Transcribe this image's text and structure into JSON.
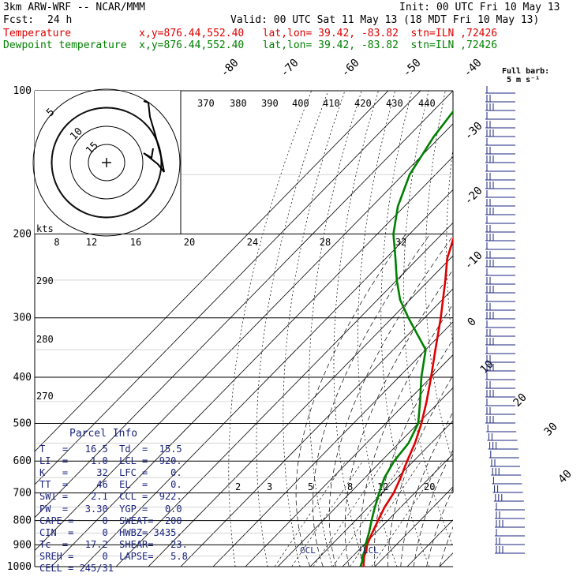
{
  "header": {
    "model": "3km ARW-WRF -- NCAR/MMM",
    "init": "Init: 00 UTC Fri 10 May 13",
    "fcst_label": "Fcst:",
    "fcst_value": "24 h",
    "valid": "Valid: 00 UTC Sat 11 May 13 (18 MDT Fri 10 May 13)",
    "temp_line": "Temperature           x,y=876.44,552.40   lat,lon= 39.42, -83.82  stn=ILN ,72426",
    "dew_line": "Dewpoint temperature  x,y=876.44,552.40   lat,lon= 39.42, -83.82  stn=ILN ,72426"
  },
  "colors": {
    "temperature": "#e00000",
    "dewpoint": "#008000",
    "barbs": "#1a237e",
    "text_blue": "#1a237e"
  },
  "chart_data": {
    "type": "line",
    "subtype": "skew-t log-p sounding",
    "y_axis": {
      "label": "pressure (hPa)",
      "ticks": [
        100,
        200,
        300,
        400,
        500,
        600,
        700,
        800,
        900,
        1000
      ],
      "scale": "log"
    },
    "isotherm_labels": [
      "-80",
      "-70",
      "-60",
      "-50",
      "-40",
      "-30",
      "-20",
      "-10",
      "0",
      "10",
      "20",
      "30",
      "40"
    ],
    "theta_labels": [
      "370",
      "380",
      "390",
      "400",
      "410",
      "420",
      "430",
      "440",
      "290",
      "280",
      "270"
    ],
    "mixing_ratio_labels": [
      "2",
      "3",
      "5",
      "8",
      "12",
      "20"
    ],
    "hodograph": {
      "unit": "kts",
      "ring_labels": [
        "5",
        "10",
        "15"
      ],
      "speed_ticks": [
        "8",
        "12",
        "16",
        "20",
        "24",
        "28",
        "32"
      ]
    },
    "barb_legend": [
      "Full barb:",
      "5 m s⁻¹"
    ],
    "annotations": [
      "CCL",
      "LCL"
    ],
    "series": [
      {
        "name": "Temperature",
        "unit": "C",
        "points": [
          [
            1000,
            16.5
          ],
          [
            975,
            15
          ],
          [
            950,
            13.5
          ],
          [
            925,
            12.5
          ],
          [
            900,
            11
          ],
          [
            850,
            9
          ],
          [
            800,
            7
          ],
          [
            750,
            5
          ],
          [
            700,
            3.5
          ],
          [
            650,
            1
          ],
          [
            600,
            -2
          ],
          [
            550,
            -5
          ],
          [
            500,
            -9
          ],
          [
            450,
            -14
          ],
          [
            400,
            -20
          ],
          [
            350,
            -27
          ],
          [
            300,
            -35
          ],
          [
            250,
            -45
          ],
          [
            225,
            -51
          ],
          [
            200,
            -56
          ],
          [
            175,
            -56
          ],
          [
            150,
            -55
          ],
          [
            125,
            -57
          ],
          [
            100,
            -60
          ]
        ]
      },
      {
        "name": "Dewpoint temperature",
        "unit": "C",
        "points": [
          [
            1000,
            15.5
          ],
          [
            975,
            14.5
          ],
          [
            950,
            13
          ],
          [
            925,
            12
          ],
          [
            900,
            10.5
          ],
          [
            850,
            8
          ],
          [
            800,
            5
          ],
          [
            750,
            2
          ],
          [
            700,
            -1
          ],
          [
            650,
            -4
          ],
          [
            600,
            -6
          ],
          [
            550,
            -7
          ],
          [
            500,
            -10
          ],
          [
            450,
            -16
          ],
          [
            400,
            -23
          ],
          [
            350,
            -30
          ],
          [
            300,
            -45
          ],
          [
            275,
            -53
          ],
          [
            250,
            -60
          ],
          [
            225,
            -67
          ],
          [
            200,
            -75
          ],
          [
            175,
            -82
          ],
          [
            150,
            -88
          ],
          [
            125,
            -92
          ],
          [
            100,
            -95
          ]
        ]
      }
    ]
  },
  "parcel": {
    "title": "Parcel Info",
    "rows": [
      "T   =   16.5  Td  =  15.5",
      "LI  =    1.0  LCL =  920.",
      "K   =     32  LFC =    0.",
      "TT  =     46  EL  =    0.",
      "SWI =    2.1  CCL =  922.",
      "PW  =   3.30  YGP =   0.0",
      "CAPE =     0  SWEAT=  200",
      "CIN  =     0  HWBZ= 3435.",
      "Tc  =   17.2  SHEAR=   23.",
      "SREH =     0  LAPSE=   5.8",
      "CELL = 245/31"
    ]
  }
}
